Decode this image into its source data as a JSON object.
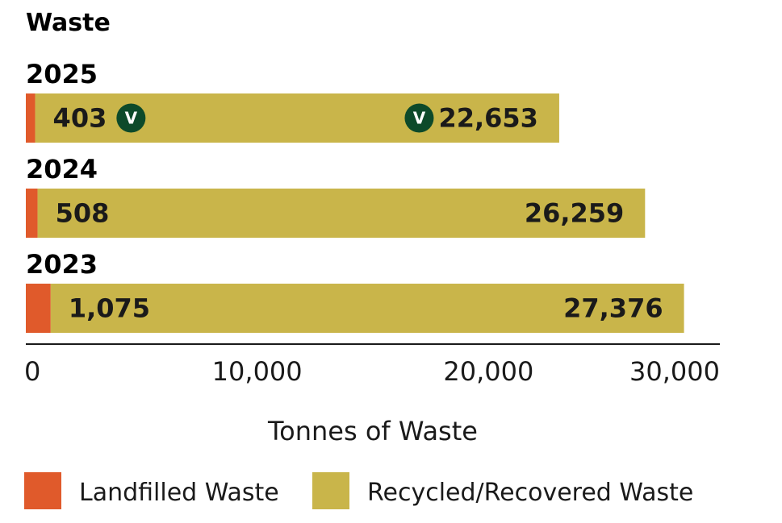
{
  "chart_data": {
    "type": "bar",
    "orientation": "horizontal",
    "stacked": true,
    "title": "Waste",
    "xlabel": "Tonnes of Waste",
    "xlim": [
      0,
      30000
    ],
    "x_ticks": [
      0,
      10000,
      20000,
      30000
    ],
    "x_tick_labels": [
      "0",
      "10,000",
      "20,000",
      "30,000"
    ],
    "categories": [
      "2025",
      "2024",
      "2023"
    ],
    "series": [
      {
        "name": "Landfilled Waste",
        "color": "#e05a2b",
        "values": [
          403,
          508,
          1075
        ],
        "labels": [
          "403",
          "508",
          "1,075"
        ]
      },
      {
        "name": "Recycled/Recovered Waste",
        "color": "#c9b54a",
        "values": [
          22653,
          26259,
          27376
        ],
        "labels": [
          "22,653",
          "26,259",
          "27,376"
        ]
      }
    ],
    "verified_badges": [
      {
        "category": "2025",
        "series": "Landfilled Waste",
        "text": "V"
      },
      {
        "category": "2025",
        "series": "Recycled/Recovered Waste",
        "text": "V"
      }
    ],
    "badge_color": "#0d4a2a",
    "legend_position": "bottom",
    "grid": false
  }
}
